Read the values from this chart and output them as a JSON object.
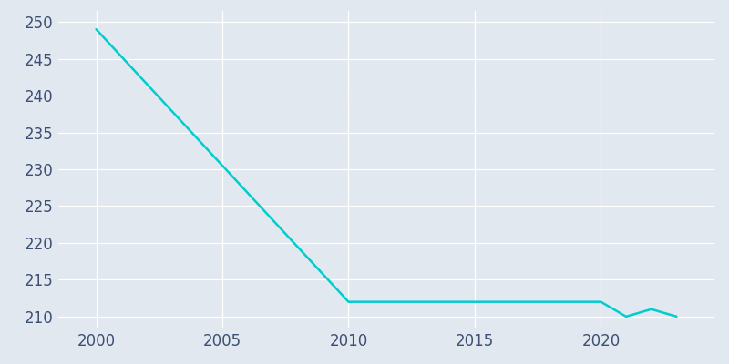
{
  "years": [
    2000,
    2010,
    2020,
    2021,
    2022,
    2023
  ],
  "population": [
    249,
    212,
    212,
    210,
    211,
    210
  ],
  "line_color": "#00CDCD",
  "background_color": "#E2E8F0",
  "grid_color": "#FFFFFF",
  "tick_color": "#3D4F72",
  "ylim": [
    208.5,
    251.5
  ],
  "yticks": [
    210,
    215,
    220,
    225,
    230,
    235,
    240,
    245,
    250
  ],
  "xticks": [
    2000,
    2005,
    2010,
    2015,
    2020
  ],
  "xlim": [
    1998.5,
    2024.5
  ],
  "line_width": 1.8,
  "tick_fontsize": 12
}
